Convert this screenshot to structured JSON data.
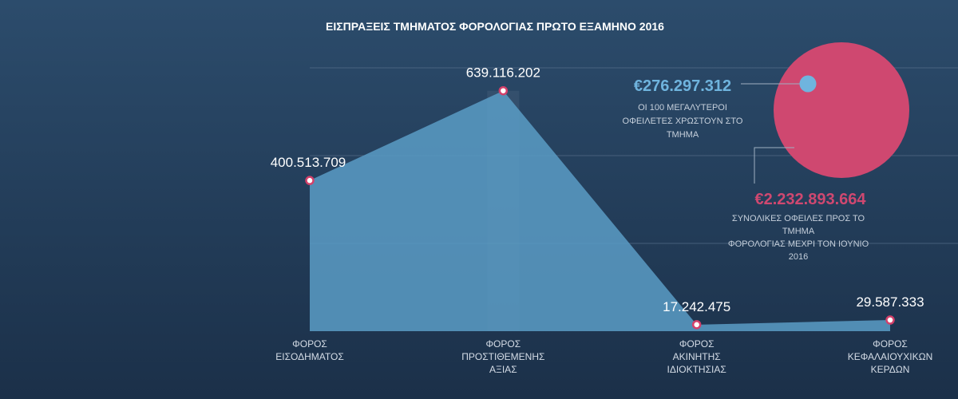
{
  "chart_data": [
    {
      "type": "area",
      "title": "ΕΙΣΠΡΑΞΕΙΣ ΤΜΗΜΑΤΟΣ ΦΟΡΟΛΟΓΙΑΣ ΠΡΩΤΟ ΕΞΑΜΗΝΟ 2016",
      "categories": [
        "ΦΟΡΟΣ\nΕΙΣΟΔΗΜΑΤΟΣ",
        "ΦΟΡΟΣ\nΠΡΟΣΤΙΘΕΜΕΝΗΣ\nΑΞΙΑΣ",
        "ΦΟΡΟΣ\nΑΚΙΝΗΤΗΣ\nΙΔΙΟΚΤΗΣΙΑΣ",
        "ΦΟΡΟΣ\nΚΕΦΑΛΑΙΟΥΧΙΚΩΝ\nΚΕΡΔΩΝ"
      ],
      "values": [
        400513709,
        639116202,
        17242475,
        29587333
      ],
      "value_labels": [
        "400.513.709",
        "639.116.202",
        "17.242.475",
        "29.587.333"
      ],
      "color": "#5b9cc6",
      "marker_color": "#d3406a",
      "ylim": [
        0,
        700000000
      ],
      "grid": true
    },
    {
      "type": "bubble",
      "values": [
        276297312,
        2232893664
      ],
      "value_labels": [
        "€276.297.312",
        "€2.232.893.664"
      ],
      "labels": [
        "ΟΙ 100 ΜΕΓΑΛΥΤΕΡΟΙ\nΟΦΕΙΛΕΤΕΣ ΧΡΩΣΤΟΥΝ ΣΤΟ\nΤΜΗΜΑ",
        "ΣΥΝΟΛΙΚΕΣ ΟΦΕΙΛΕΣ ΠΡΟΣ ΤΟ ΤΜΗΜΑ\nΦΟΡΟΛΟΓΙΑΣ ΜΕΧΡΙ ΤΟΝ ΙΟΥΝΙΟ 2016"
      ],
      "colors": [
        "#6fb4de",
        "#cf4870"
      ]
    }
  ]
}
